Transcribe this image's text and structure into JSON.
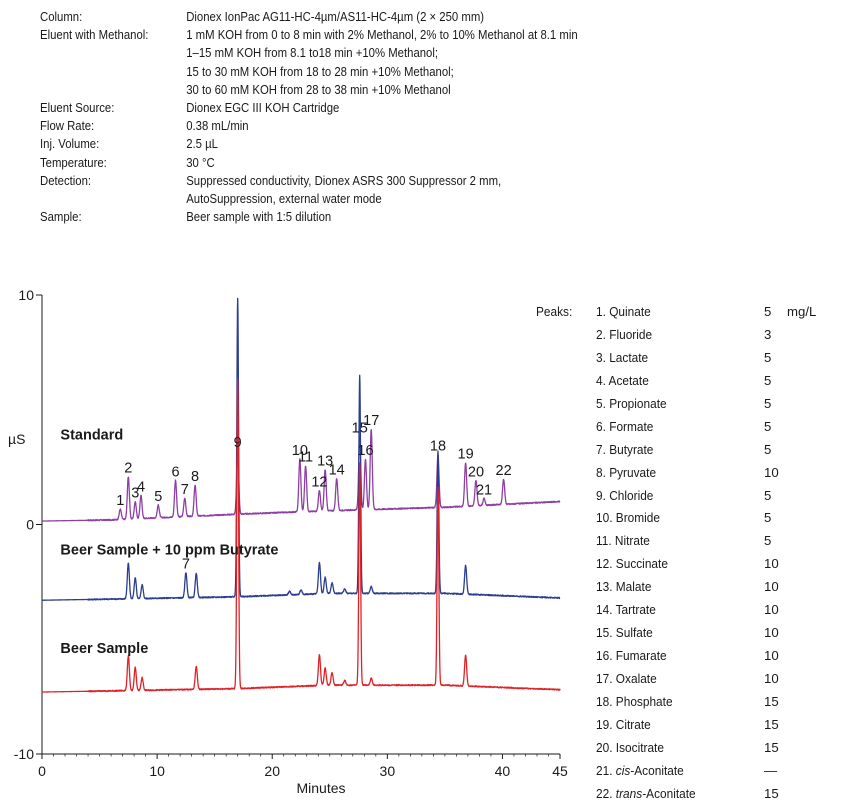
{
  "conditions": [
    {
      "label": "Column:",
      "lines": [
        "Dionex IonPac AG11-HC-4µm/AS11-HC-4µm (2 × 250 mm)"
      ]
    },
    {
      "label": "Eluent with Methanol:",
      "lines": [
        "1 mM KOH from 0 to 8 min with 2% Methanol, 2% to 10% Methanol at 8.1 min",
        "1–15 mM KOH from 8.1 to18 min +10% Methanol;",
        "15 to 30 mM KOH from 18 to 28 min +10% Methanol;",
        "30 to 60 mM KOH from 28 to 38 min +10% Methanol"
      ]
    },
    {
      "label": "Eluent Source:",
      "lines": [
        "Dionex EGC III KOH Cartridge"
      ]
    },
    {
      "label": "Flow Rate:",
      "lines": [
        "0.38 mL/min"
      ]
    },
    {
      "label": "Inj. Volume:",
      "lines": [
        "2.5 µL"
      ]
    },
    {
      "label": "Temperature:",
      "lines": [
        "30 °C"
      ]
    },
    {
      "label": "Detection:",
      "lines": [
        "Suppressed conductivity, Dionex ASRS 300 Suppressor 2 mm,",
        "AutoSuppression, external water mode"
      ]
    },
    {
      "label": "Sample:",
      "lines": [
        "Beer sample with 1:5 dilution"
      ]
    }
  ],
  "chart_data": {
    "type": "line",
    "title": "",
    "xlabel": "Minutes",
    "ylabel": "µS",
    "xlim": [
      0,
      45
    ],
    "ylim": [
      -10,
      10
    ],
    "x_ticks": [
      0,
      10,
      20,
      30,
      40,
      45
    ],
    "y_ticks": [
      -10,
      0,
      10
    ],
    "grid": false,
    "colors": {
      "standard": "#8e3fa3",
      "spiked": "#2a3d8f",
      "beer": "#e02228"
    },
    "traces": [
      {
        "name": "Standard",
        "color": "#8e3fa3",
        "baseline": [
          [
            0,
            0.15
          ],
          [
            6,
            0.2
          ],
          [
            17,
            0.45
          ],
          [
            25,
            0.6
          ],
          [
            35,
            0.75
          ],
          [
            45,
            1.0
          ]
        ],
        "peaks": [
          {
            "label": "1",
            "t": 6.8,
            "h": 0.45
          },
          {
            "label": "2",
            "t": 7.5,
            "h": 1.85
          },
          {
            "label": "3",
            "t": 8.1,
            "h": 0.75
          },
          {
            "label": "4",
            "t": 8.6,
            "h": 1.0
          },
          {
            "label": "5",
            "t": 10.1,
            "h": 0.55
          },
          {
            "label": "6",
            "t": 11.6,
            "h": 1.6
          },
          {
            "label": "7",
            "t": 12.4,
            "h": 0.8
          },
          {
            "label": "8",
            "t": 13.3,
            "h": 1.35
          },
          {
            "label": "9",
            "t": 17.0,
            "h": 2.75
          },
          {
            "label": "10",
            "t": 22.4,
            "h": 2.3
          },
          {
            "label": "11",
            "t": 22.9,
            "h": 2.0
          },
          {
            "label": "12",
            "t": 24.1,
            "h": 0.9
          },
          {
            "label": "13",
            "t": 24.6,
            "h": 1.8
          },
          {
            "label": "14",
            "t": 25.6,
            "h": 1.4
          },
          {
            "label": "15",
            "t": 27.6,
            "h": 3.2
          },
          {
            "label": "16",
            "t": 28.1,
            "h": 2.2
          },
          {
            "label": "17",
            "t": 28.6,
            "h": 3.5
          },
          {
            "label": "18",
            "t": 34.4,
            "h": 2.3
          },
          {
            "label": "19",
            "t": 36.8,
            "h": 1.9
          },
          {
            "label": "20",
            "t": 37.7,
            "h": 1.1
          },
          {
            "label": "21",
            "t": 38.4,
            "h": 0.3
          },
          {
            "label": "22",
            "t": 40.1,
            "h": 1.1
          }
        ]
      },
      {
        "name": "Beer Sample + 10 ppm Butyrate",
        "color": "#2a3d8f",
        "baseline": [
          [
            0,
            -3.3
          ],
          [
            6,
            -3.25
          ],
          [
            17,
            -3.15
          ],
          [
            25,
            -3.0
          ],
          [
            35,
            -3.0
          ],
          [
            45,
            -3.2
          ]
        ],
        "peaks": [
          {
            "label": "",
            "t": 7.5,
            "h": 1.55
          },
          {
            "label": "",
            "t": 8.1,
            "h": 0.9
          },
          {
            "label": "",
            "t": 8.7,
            "h": 0.6
          },
          {
            "label": "7",
            "t": 12.5,
            "h": 1.1
          },
          {
            "label": "",
            "t": 13.4,
            "h": 1.05
          },
          {
            "label": "",
            "t": 17.0,
            "h": 13.0
          },
          {
            "label": "",
            "t": 21.5,
            "h": 0.15
          },
          {
            "label": "",
            "t": 22.5,
            "h": 0.2
          },
          {
            "label": "",
            "t": 24.1,
            "h": 1.35
          },
          {
            "label": "",
            "t": 24.6,
            "h": 0.7
          },
          {
            "label": "",
            "t": 25.2,
            "h": 0.45
          },
          {
            "label": "",
            "t": 26.3,
            "h": 0.2
          },
          {
            "label": "",
            "t": 27.6,
            "h": 9.5
          },
          {
            "label": "",
            "t": 28.6,
            "h": 0.3
          },
          {
            "label": "",
            "t": 34.4,
            "h": 6.2
          },
          {
            "label": "",
            "t": 36.8,
            "h": 1.25
          }
        ]
      },
      {
        "name": "Beer Sample",
        "color": "#e02228",
        "baseline": [
          [
            0,
            -7.3
          ],
          [
            6,
            -7.25
          ],
          [
            17,
            -7.15
          ],
          [
            25,
            -7.0
          ],
          [
            35,
            -7.0
          ],
          [
            45,
            -7.2
          ]
        ],
        "peaks": [
          {
            "label": "",
            "t": 7.5,
            "h": 1.5
          },
          {
            "label": "",
            "t": 8.1,
            "h": 1.0
          },
          {
            "label": "",
            "t": 8.7,
            "h": 0.55
          },
          {
            "label": "",
            "t": 13.4,
            "h": 1.0
          },
          {
            "label": "",
            "t": 17.0,
            "h": 13.5
          },
          {
            "label": "",
            "t": 24.1,
            "h": 1.35
          },
          {
            "label": "",
            "t": 24.6,
            "h": 0.75
          },
          {
            "label": "",
            "t": 25.2,
            "h": 0.55
          },
          {
            "label": "",
            "t": 26.3,
            "h": 0.2
          },
          {
            "label": "",
            "t": 27.6,
            "h": 9.7
          },
          {
            "label": "",
            "t": 28.6,
            "h": 0.3
          },
          {
            "label": "",
            "t": 34.4,
            "h": 8.6
          },
          {
            "label": "",
            "t": 36.8,
            "h": 1.35
          }
        ]
      }
    ],
    "trace_labels": [
      {
        "text": "Standard",
        "x": 1.6,
        "y": 3.7
      },
      {
        "text": "Beer Sample + 10 ppm Butyrate",
        "x": 1.6,
        "y": -1.3
      },
      {
        "text": "Beer Sample",
        "x": 1.6,
        "y": -5.6
      }
    ]
  },
  "peaks_legend": {
    "title": "Peaks:",
    "unit": "mg/L",
    "items": [
      {
        "num": "1.",
        "name": "Quinate",
        "conc": "5"
      },
      {
        "num": "2.",
        "name": "Fluoride",
        "conc": "3"
      },
      {
        "num": "3.",
        "name": "Lactate",
        "conc": "5"
      },
      {
        "num": "4.",
        "name": "Acetate",
        "conc": "5"
      },
      {
        "num": "5.",
        "name": "Propionate",
        "conc": "5"
      },
      {
        "num": "6.",
        "name": "Formate",
        "conc": "5"
      },
      {
        "num": "7.",
        "name": "Butyrate",
        "conc": "5"
      },
      {
        "num": "8.",
        "name": "Pyruvate",
        "conc": "10"
      },
      {
        "num": "9.",
        "name": "Chloride",
        "conc": "5"
      },
      {
        "num": "10.",
        "name": "Bromide",
        "conc": "5"
      },
      {
        "num": "11.",
        "name": "Nitrate",
        "conc": "5"
      },
      {
        "num": "12.",
        "name": "Succinate",
        "conc": "10"
      },
      {
        "num": "13.",
        "name": "Malate",
        "conc": "10"
      },
      {
        "num": "14.",
        "name": "Tartrate",
        "conc": "10"
      },
      {
        "num": "15.",
        "name": "Sulfate",
        "conc": "10"
      },
      {
        "num": "16.",
        "name": "Fumarate",
        "conc": "10"
      },
      {
        "num": "17.",
        "name": "Oxalate",
        "conc": "10"
      },
      {
        "num": "18.",
        "name": "Phosphate",
        "conc": "15"
      },
      {
        "num": "19.",
        "name": "Citrate",
        "conc": "15"
      },
      {
        "num": "20.",
        "name": "Isocitrate",
        "conc": "15"
      },
      {
        "num": "21.",
        "name_italic": "cis",
        "name_rest": "-Aconitate",
        "conc": "—"
      },
      {
        "num": "22.",
        "name_italic": "trans",
        "name_rest": "-Aconitate",
        "conc": "15"
      }
    ]
  }
}
